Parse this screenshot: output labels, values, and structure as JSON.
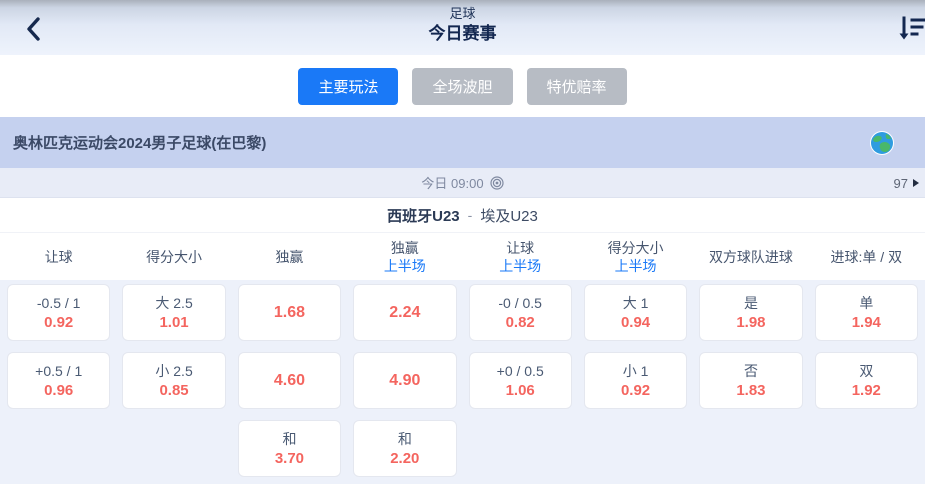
{
  "header": {
    "sport": "足球",
    "title": "今日赛事",
    "back_icon": "chevron-left",
    "sort_icon": "sort-descending"
  },
  "tabs": [
    {
      "name": "tab-main-markets",
      "label": "主要玩法",
      "active": true
    },
    {
      "name": "tab-correct-score",
      "label": "全场波胆",
      "active": false
    },
    {
      "name": "tab-special-odds",
      "label": "特优赔率",
      "active": false
    }
  ],
  "league": {
    "name": "奥林匹克运动会2024男子足球(在巴黎)",
    "icon": "globe-icon"
  },
  "match": {
    "time": "今日 09:00",
    "time_icon": "concentric-circles-icon",
    "market_count": "97",
    "home": "西班牙U23",
    "separator": "-",
    "away": "埃及U23"
  },
  "odds_table": {
    "columns": [
      {
        "label": "让球",
        "sublabel": ""
      },
      {
        "label": "得分大小",
        "sublabel": ""
      },
      {
        "label": "独赢",
        "sublabel": ""
      },
      {
        "label": "独赢",
        "sublabel": "上半场"
      },
      {
        "label": "让球",
        "sublabel": "上半场"
      },
      {
        "label": "得分大小",
        "sublabel": "上半场"
      },
      {
        "label": "双方球队进球",
        "sublabel": ""
      },
      {
        "label": "进球:单 / 双",
        "sublabel": ""
      }
    ],
    "rows": [
      [
        {
          "label": "-0.5 / 1",
          "odds": "0.92"
        },
        {
          "label": "大 2.5",
          "odds": "1.01"
        },
        {
          "label": "",
          "odds": "1.68"
        },
        {
          "label": "",
          "odds": "2.24"
        },
        {
          "label": "-0 / 0.5",
          "odds": "0.82"
        },
        {
          "label": "大 1",
          "odds": "0.94"
        },
        {
          "label": "是",
          "odds": "1.98"
        },
        {
          "label": "单",
          "odds": "1.94"
        }
      ],
      [
        {
          "label": "+0.5 / 1",
          "odds": "0.96"
        },
        {
          "label": "小 2.5",
          "odds": "0.85"
        },
        {
          "label": "",
          "odds": "4.60"
        },
        {
          "label": "",
          "odds": "4.90"
        },
        {
          "label": "+0 / 0.5",
          "odds": "1.06"
        },
        {
          "label": "小 1",
          "odds": "0.92"
        },
        {
          "label": "否",
          "odds": "1.83"
        },
        {
          "label": "双",
          "odds": "1.92"
        }
      ],
      [
        null,
        null,
        {
          "label": "和",
          "odds": "3.70"
        },
        {
          "label": "和",
          "odds": "2.20"
        },
        null,
        null,
        null,
        null
      ]
    ]
  },
  "colors": {
    "accent_blue": "#1a79f7",
    "odds_red": "#f4655f",
    "league_bar_bg": "#c5d1ef",
    "body_bg": "#edf1fa",
    "dark_navy": "#132750"
  }
}
